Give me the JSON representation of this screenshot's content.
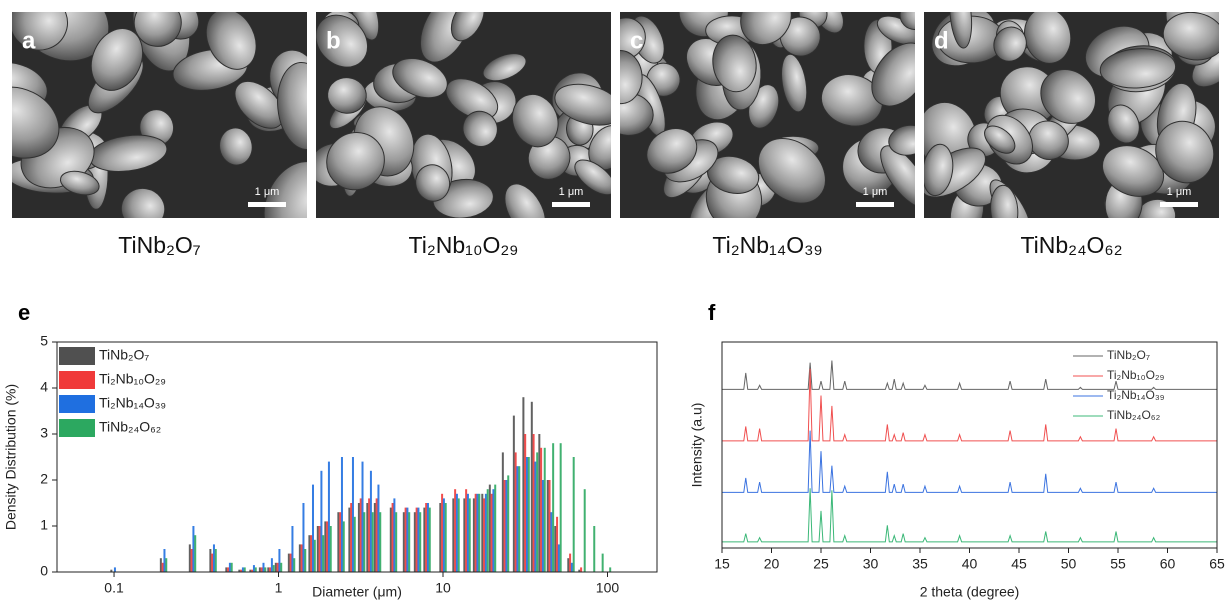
{
  "panels": [
    {
      "label": "a",
      "scale_bar": "1 μm",
      "caption": "TiNb₂O₇"
    },
    {
      "label": "b",
      "scale_bar": "1 μm",
      "caption": "Ti₂Nb₁₀O₂₉"
    },
    {
      "label": "c",
      "scale_bar": "1 μm",
      "caption": "Ti₂Nb₁₄O₃₉"
    },
    {
      "label": "d",
      "scale_bar": "1 μm",
      "caption": "TiNb₂₄O₆₂"
    }
  ],
  "chart_data": [
    {
      "type": "bar",
      "title": "e",
      "x_label": "Diameter (μm)",
      "y_label": "Density Distribution (%)",
      "xscale": "log",
      "xlim": [
        0.045,
        200
      ],
      "xticks": [
        0.1,
        1,
        10,
        100
      ],
      "ylim": [
        0,
        5
      ],
      "yticks": [
        0,
        1,
        2,
        3,
        4,
        5
      ],
      "legend": "upper left",
      "x": [
        0.1,
        0.2,
        0.3,
        0.4,
        0.5,
        0.6,
        0.7,
        0.8,
        0.9,
        1.0,
        1.2,
        1.4,
        1.6,
        1.8,
        2.0,
        2.4,
        2.8,
        3.2,
        3.6,
        4.0,
        5,
        6,
        7,
        8,
        10,
        12,
        14,
        16,
        18,
        20,
        24,
        28,
        32,
        36,
        40,
        45,
        50,
        60,
        70,
        80,
        90,
        100
      ],
      "series": [
        {
          "name": "TiNb₂O₇",
          "color": "#505050",
          "values": [
            0.05,
            0.3,
            0.6,
            0.5,
            0.1,
            0.05,
            0.05,
            0.1,
            0.1,
            0.2,
            0.4,
            0.6,
            0.8,
            1.0,
            1.1,
            1.3,
            1.4,
            1.5,
            1.5,
            1.5,
            1.4,
            1.3,
            1.3,
            1.4,
            1.5,
            1.6,
            1.6,
            1.6,
            1.7,
            1.9,
            2.6,
            3.4,
            3.8,
            3.7,
            3.0,
            2.0,
            1.0,
            0.3,
            0.05,
            0,
            0,
            0
          ]
        },
        {
          "name": "Ti₂Nb₁₀O₂₉",
          "color": "#f03a3a",
          "values": [
            0,
            0.2,
            0.5,
            0.4,
            0.1,
            0.05,
            0.05,
            0.1,
            0.1,
            0.2,
            0.4,
            0.6,
            0.8,
            1.0,
            1.1,
            1.3,
            1.5,
            1.6,
            1.6,
            1.6,
            1.5,
            1.4,
            1.4,
            1.5,
            1.7,
            1.8,
            1.8,
            1.7,
            1.6,
            1.7,
            2.0,
            2.6,
            3.0,
            3.0,
            2.7,
            2.0,
            1.2,
            0.4,
            0.1,
            0,
            0,
            0
          ]
        },
        {
          "name": "Ti₂Nb₁₄O₃₉",
          "color": "#1f6fe0",
          "values": [
            0.1,
            0.5,
            1.0,
            0.6,
            0.2,
            0.1,
            0.15,
            0.2,
            0.3,
            0.5,
            1.0,
            1.5,
            1.9,
            2.2,
            2.4,
            2.5,
            2.5,
            2.4,
            2.2,
            1.9,
            1.6,
            1.4,
            1.4,
            1.5,
            1.6,
            1.7,
            1.7,
            1.7,
            1.7,
            1.8,
            2.0,
            2.3,
            2.5,
            2.4,
            2.0,
            1.3,
            0.6,
            0.2,
            0,
            0,
            0,
            0
          ]
        },
        {
          "name": "TiNb₂₄O₆₂",
          "color": "#2ca860",
          "values": [
            0,
            0.3,
            0.8,
            0.5,
            0.2,
            0.1,
            0.1,
            0.1,
            0.15,
            0.2,
            0.3,
            0.5,
            0.7,
            0.8,
            1.0,
            1.1,
            1.2,
            1.3,
            1.3,
            1.3,
            1.3,
            1.3,
            1.3,
            1.4,
            1.5,
            1.6,
            1.6,
            1.7,
            1.8,
            1.9,
            2.1,
            2.3,
            2.5,
            2.6,
            2.7,
            2.8,
            2.8,
            2.5,
            1.8,
            1.0,
            0.4,
            0.1
          ]
        }
      ]
    },
    {
      "type": "line",
      "title": "f",
      "x_label": "2 theta (degree)",
      "y_label": "Intensity (a.u)",
      "xlim": [
        15,
        65
      ],
      "xticks": [
        15,
        20,
        25,
        30,
        35,
        40,
        45,
        50,
        55,
        60,
        65
      ],
      "ylim": [
        0,
        10
      ],
      "legend": "upper right",
      "x": [
        15,
        17.2,
        17.4,
        17.6,
        18.6,
        18.8,
        19.0,
        23.7,
        23.9,
        24.1,
        24.8,
        25.0,
        25.2,
        25.9,
        26.1,
        26.3,
        27.2,
        27.4,
        27.6,
        31.5,
        31.7,
        31.9,
        32.2,
        32.4,
        32.6,
        33.1,
        33.3,
        33.5,
        35.3,
        35.5,
        35.7,
        38.8,
        39.0,
        39.2,
        43.9,
        44.1,
        44.3,
        47.5,
        47.7,
        47.9,
        51.0,
        51.2,
        51.4,
        54.6,
        54.8,
        55.0,
        58.4,
        58.6,
        58.8,
        65
      ],
      "series": [
        {
          "name": "TiNb₂O₇",
          "color": "#666666",
          "values": [
            7.7,
            7.7,
            8.5,
            7.7,
            7.7,
            7.9,
            7.7,
            7.7,
            9.0,
            7.7,
            7.7,
            8.1,
            7.7,
            7.7,
            9.1,
            7.7,
            7.7,
            8.1,
            7.7,
            7.7,
            8.0,
            7.7,
            7.7,
            8.2,
            7.7,
            7.7,
            8.0,
            7.7,
            7.7,
            7.9,
            7.7,
            7.7,
            8.0,
            7.7,
            7.7,
            8.1,
            7.7,
            7.7,
            8.2,
            7.7,
            7.7,
            7.8,
            7.7,
            7.7,
            8.1,
            7.7,
            7.7,
            7.8,
            7.7,
            7.7
          ]
        },
        {
          "name": "Ti₂Nb₁₀O₂₉",
          "color": "#f05050",
          "values": [
            5.2,
            5.2,
            5.9,
            5.2,
            5.2,
            5.8,
            5.2,
            5.2,
            8.7,
            5.2,
            5.2,
            7.4,
            5.2,
            5.2,
            6.9,
            5.2,
            5.2,
            5.5,
            5.2,
            5.2,
            6.0,
            5.2,
            5.2,
            5.5,
            5.2,
            5.2,
            5.6,
            5.2,
            5.2,
            5.5,
            5.2,
            5.2,
            5.5,
            5.2,
            5.2,
            5.7,
            5.2,
            5.2,
            6.0,
            5.2,
            5.2,
            5.4,
            5.2,
            5.2,
            5.8,
            5.2,
            5.2,
            5.4,
            5.2,
            5.2
          ]
        },
        {
          "name": "Ti₂Nb₁₄O₃₉",
          "color": "#3b73e0",
          "values": [
            2.7,
            2.7,
            3.4,
            2.7,
            2.7,
            3.2,
            2.7,
            2.7,
            5.7,
            2.7,
            2.7,
            4.7,
            2.7,
            2.7,
            4.0,
            2.7,
            2.7,
            3.0,
            2.7,
            2.7,
            3.7,
            2.7,
            2.7,
            3.1,
            2.7,
            2.7,
            3.1,
            2.7,
            2.7,
            3.0,
            2.7,
            2.7,
            3.0,
            2.7,
            2.7,
            3.2,
            2.7,
            2.7,
            3.6,
            2.7,
            2.7,
            2.9,
            2.7,
            2.7,
            3.2,
            2.7,
            2.7,
            2.9,
            2.7,
            2.7
          ]
        },
        {
          "name": "TiNb₂₄O₆₂",
          "color": "#3cb878",
          "values": [
            0.3,
            0.3,
            0.7,
            0.3,
            0.3,
            0.5,
            0.3,
            0.3,
            2.9,
            0.3,
            0.3,
            1.8,
            0.3,
            0.3,
            2.8,
            0.3,
            0.3,
            0.6,
            0.3,
            0.3,
            1.1,
            0.3,
            0.3,
            0.6,
            0.3,
            0.3,
            0.7,
            0.3,
            0.3,
            0.5,
            0.3,
            0.3,
            0.6,
            0.3,
            0.3,
            0.6,
            0.3,
            0.3,
            0.8,
            0.3,
            0.3,
            0.5,
            0.3,
            0.3,
            0.8,
            0.3,
            0.3,
            0.5,
            0.3,
            0.3
          ]
        }
      ]
    }
  ]
}
